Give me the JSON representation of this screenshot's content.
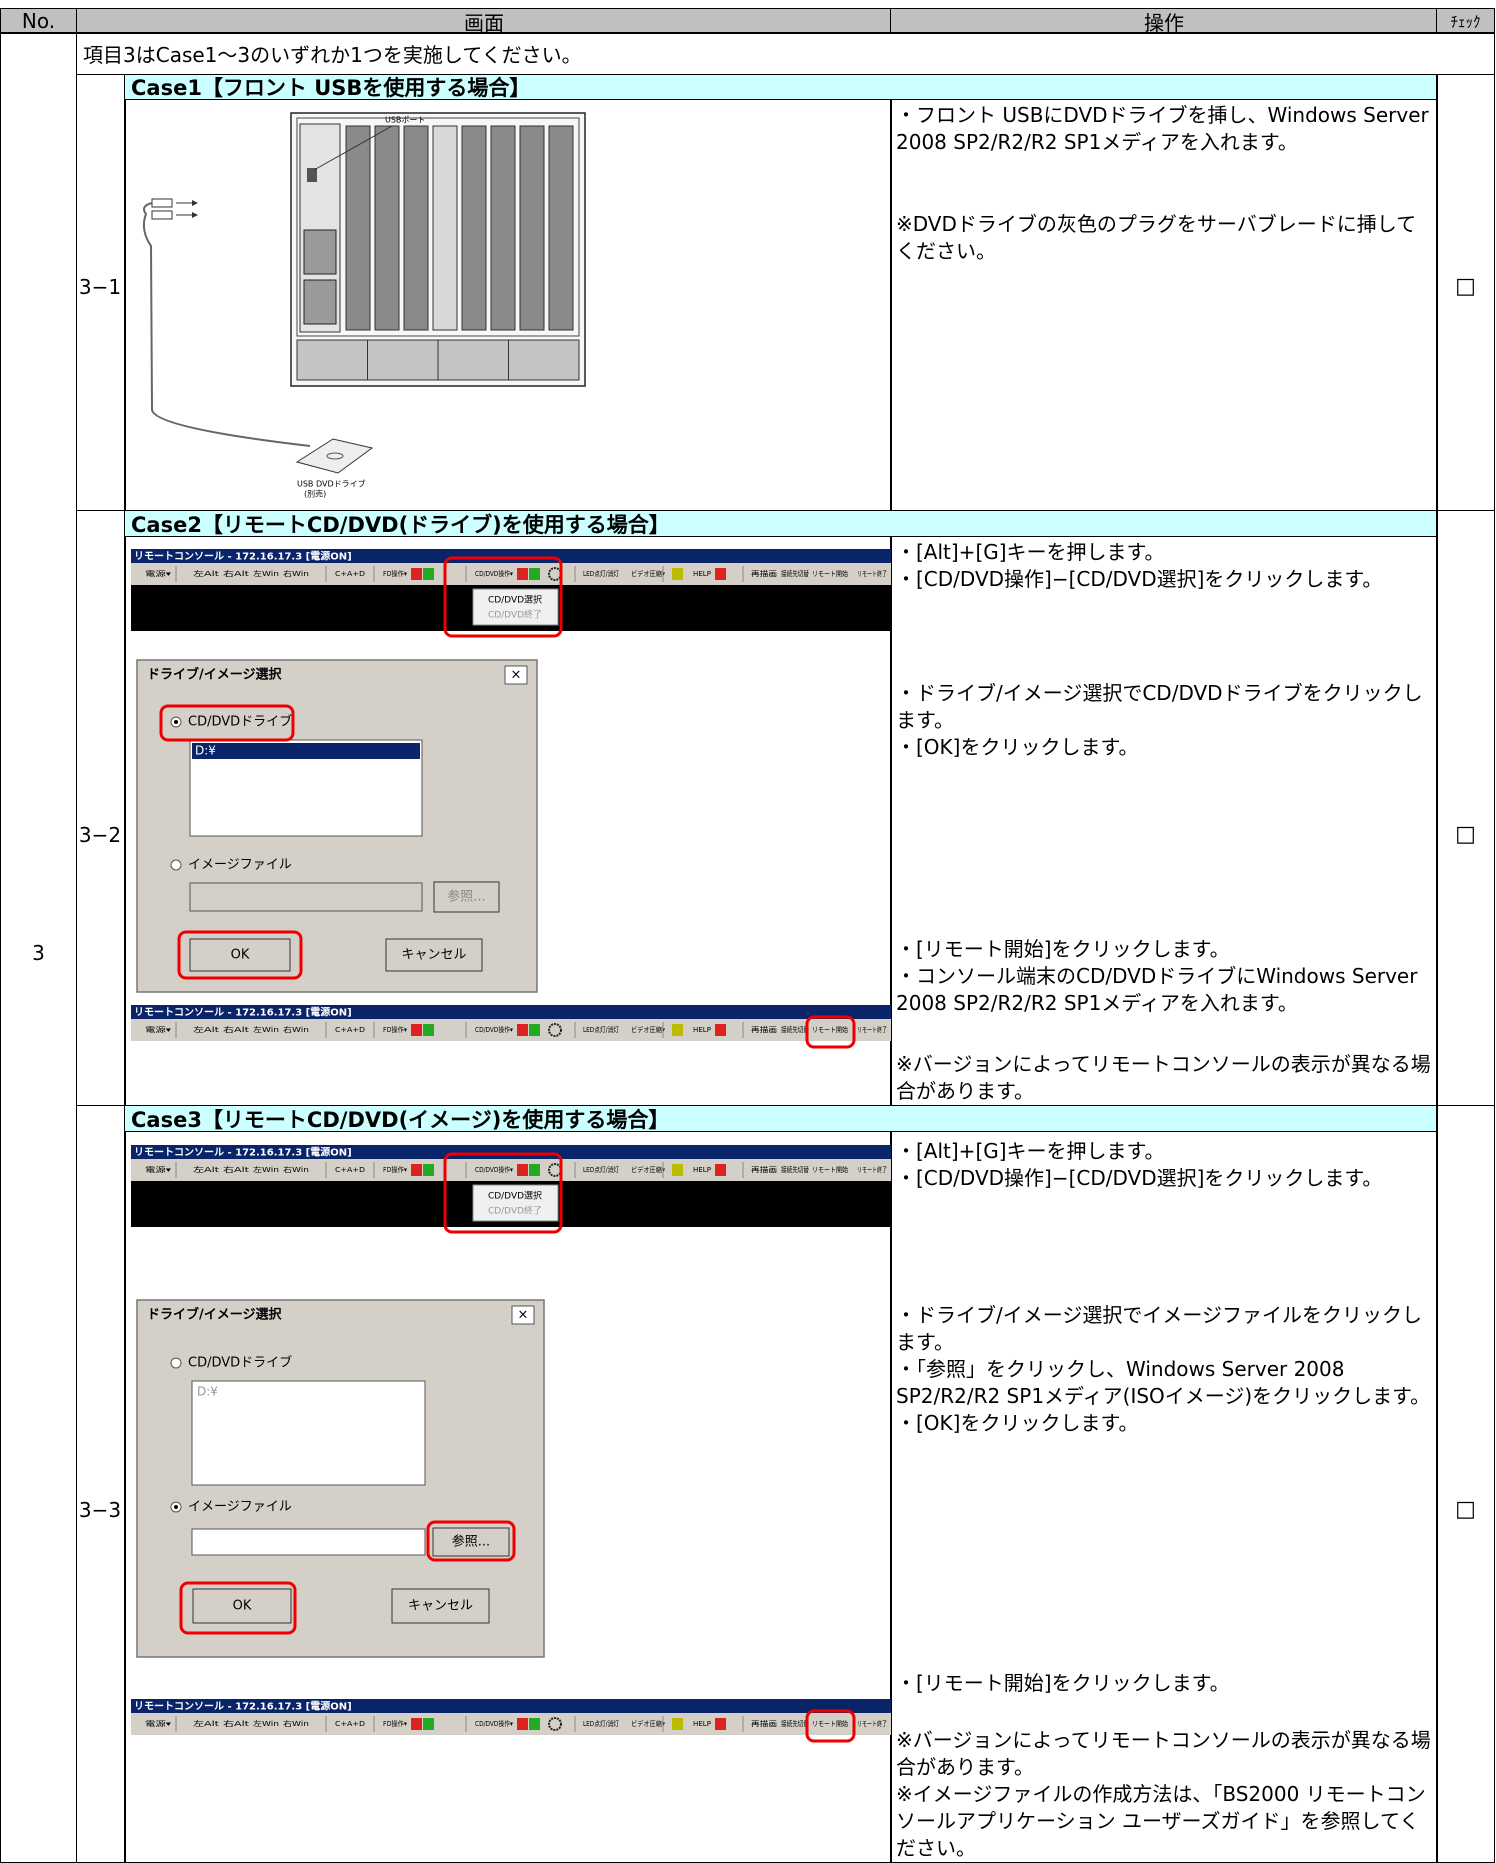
{
  "header": {
    "no": "No.",
    "screen": "画面",
    "operation": "操作",
    "check": "ﾁｪｯｸ"
  },
  "item": {
    "no": "3",
    "note": "項目3はCase1～3のいずれか1つを実施してください。"
  },
  "cases": [
    {
      "title": "Case1【フロント USBを使用する場合】",
      "step": "3−1",
      "check": "□",
      "figure": {
        "usb_port": "USBポート",
        "drive": "USB DVDドライブ",
        "drive_note": "(別売)"
      },
      "operations": [
        [
          "・フロント USBにDVDドライブを挿し、Windows Server 2008 SP2/R2/R2 SP1メディアを入れます。"
        ],
        [
          "※DVDドライブの灰色のプラグをサーバブレードに挿してください。"
        ]
      ]
    },
    {
      "title": "Case2【リモートCD/DVD(ドライブ)を使用する場合】",
      "step": "3−2",
      "check": "□",
      "operations": [
        [
          "・[Alt]+[G]キーを押します。",
          "・[CD/DVD操作]−[CD/DVD選択]をクリックします。"
        ],
        [
          "・ドライブ/イメージ選択でCD/DVDドライブをクリックします。",
          "・[OK]をクリックします。"
        ],
        [
          "・[リモート開始]をクリックします。",
          "・コンソール端末のCD/DVDドライブにWindows Server 2008 SP2/R2/R2 SP1メディアを入れます。"
        ],
        [
          "※バージョンによってリモートコンソールの表示が異なる場合があります。"
        ]
      ]
    },
    {
      "title": "Case3【リモートCD/DVD(イメージ)を使用する場合】",
      "step": "3−3",
      "check": "□",
      "operations": [
        [
          "・[Alt]+[G]キーを押します。",
          "・[CD/DVD操作]−[CD/DVD選択]をクリックします。"
        ],
        [
          "・ドライブ/イメージ選択でイメージファイルをクリックします。",
          "・「参照」をクリックし、Windows Server 2008 SP2/R2/R2 SP1メディア(ISOイメージ)をクリックします。",
          "・[OK]をクリックします。"
        ],
        [
          "・[リモート開始]をクリックします。"
        ],
        [
          "※バージョンによってリモートコンソールの表示が異なる場合があります。",
          "※イメージファイルの作成方法は、「BS2000 リモートコンソールアプリケーション ユーザーズガイド」を参照してください。"
        ]
      ]
    }
  ],
  "console": {
    "title": "リモートコンソール - 172.16.17.3 [電源ON]",
    "toolbar": [
      "電源▾",
      "左Alt",
      "右Alt",
      "左Win",
      "右Win",
      "C+A+D",
      "FD操作▾",
      "CD/DVD操作▾",
      "LED点灯/消灯",
      "ビデオ圧縮▾",
      "HELP",
      "再描画",
      "接続先切替",
      "リモート開始",
      "リモート終了"
    ],
    "menu": [
      "CD/DVD選択",
      "CD/DVD終了"
    ]
  },
  "dialog": {
    "title": "ドライブ/イメージ選択",
    "close": "×",
    "drive": "CD/DVDドライブ",
    "list_item": "D:¥",
    "image": "イメージファイル",
    "browse": "参照...",
    "ok": "OK",
    "cancel": "キャンセル"
  }
}
